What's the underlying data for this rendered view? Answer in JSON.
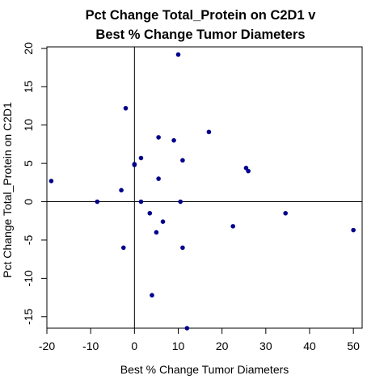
{
  "chart_data": {
    "type": "scatter",
    "title_lines": [
      "Pct Change Total_Protein on C2D1 v",
      "Best % Change Tumor Diameters"
    ],
    "xlabel": "Best % Change Tumor Diameters",
    "ylabel": "Pct Change Total_Protein on C2D1",
    "xlim": [
      -20,
      52
    ],
    "ylim": [
      -16.5,
      20.2
    ],
    "xticks": [
      -20,
      -10,
      0,
      10,
      20,
      30,
      40,
      50
    ],
    "yticks": [
      -15,
      -10,
      -5,
      0,
      5,
      10,
      15,
      20
    ],
    "reference_lines": {
      "x": 0,
      "y": 0
    },
    "point_color": "#00008B",
    "x": [
      -19,
      -8.5,
      -3,
      -2,
      -2.5,
      0,
      0,
      1.5,
      1.5,
      3.5,
      4,
      5,
      5.5,
      5.5,
      6.5,
      9,
      10,
      10.5,
      11,
      11,
      12,
      17,
      22.5,
      25.5,
      26,
      34.5,
      50
    ],
    "y": [
      2.7,
      0.0,
      1.5,
      12.2,
      -6.0,
      4.8,
      4.9,
      5.7,
      0.0,
      -1.5,
      -12.2,
      -4.0,
      8.4,
      3.0,
      -2.6,
      8.0,
      19.2,
      0.0,
      -6.0,
      5.4,
      -16.5,
      9.1,
      -3.2,
      4.4,
      4.0,
      -1.5,
      -3.7
    ]
  }
}
